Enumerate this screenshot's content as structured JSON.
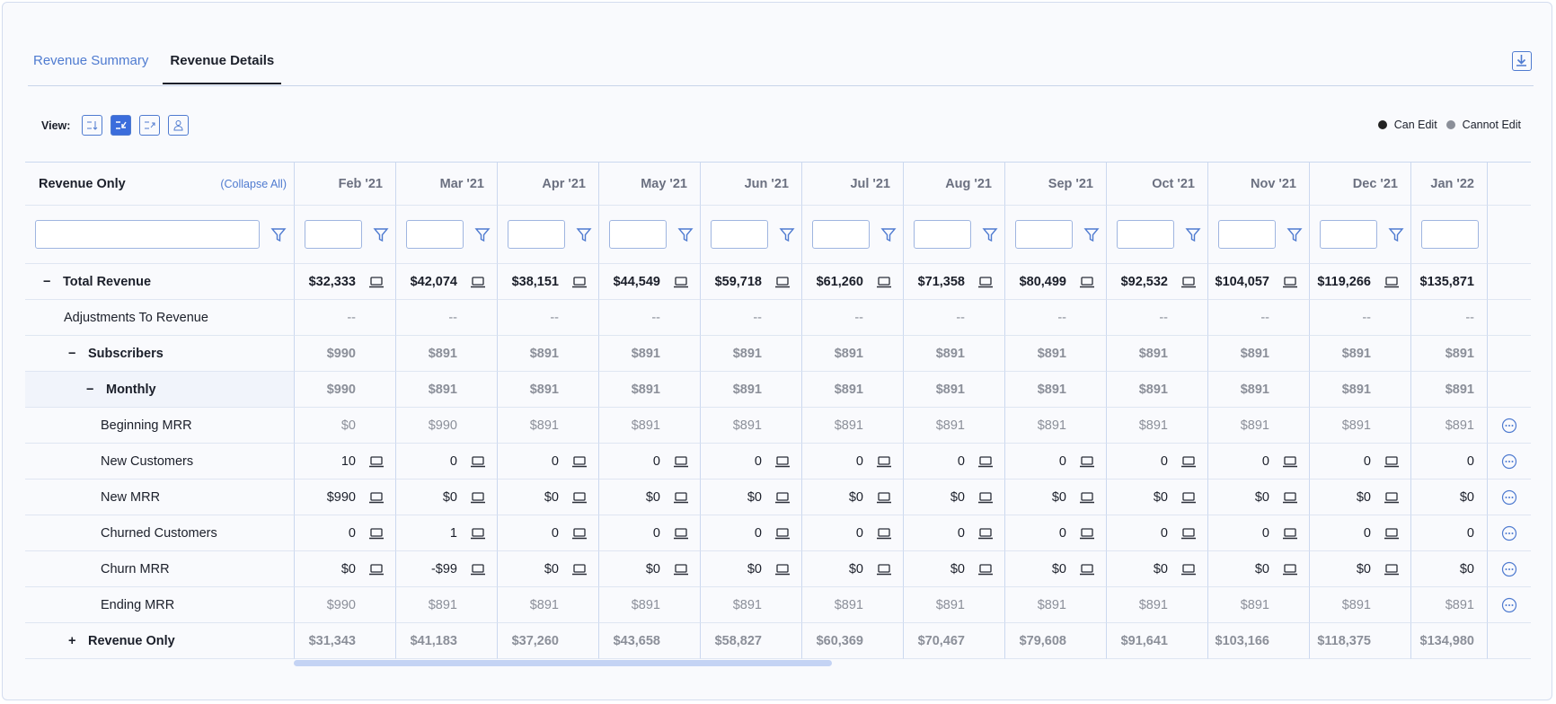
{
  "tabs": [
    "Revenue Summary",
    "Revenue Details"
  ],
  "view_label": "View:",
  "legend": [
    "Can Edit",
    "Cannot Edit"
  ],
  "table": {
    "first_header": "Revenue Only",
    "collapse_all": "(Collapse All)",
    "columns": [
      "Feb '21",
      "Mar '21",
      "Apr '21",
      "May '21",
      "Jun '21",
      "Jul '21",
      "Aug '21",
      "Sep '21",
      "Oct '21",
      "Nov '21",
      "Dec '21",
      "Jan '22"
    ],
    "rows": [
      {
        "toggle": "−",
        "label": "Total Revenue",
        "kind": "total",
        "editable": true,
        "actions": false,
        "cells": [
          "$32,333",
          "$42,074",
          "$38,151",
          "$44,549",
          "$59,718",
          "$61,260",
          "$71,358",
          "$80,499",
          "$92,532",
          "$104,057",
          "$119,266",
          "$135,871"
        ]
      },
      {
        "label": "Adjustments To Revenue",
        "kind": "adjust",
        "editable": false,
        "actions": false,
        "cells": [
          "--",
          "--",
          "--",
          "--",
          "--",
          "--",
          "--",
          "--",
          "--",
          "--",
          "--",
          "--"
        ]
      },
      {
        "toggle": "−",
        "label": "Subscribers",
        "kind": "group",
        "editable": false,
        "actions": false,
        "cells": [
          "$990",
          "$891",
          "$891",
          "$891",
          "$891",
          "$891",
          "$891",
          "$891",
          "$891",
          "$891",
          "$891",
          "$891"
        ]
      },
      {
        "toggle": "−",
        "label": "Monthly",
        "kind": "subgroup",
        "editable": false,
        "actions": false,
        "cells": [
          "$990",
          "$891",
          "$891",
          "$891",
          "$891",
          "$891",
          "$891",
          "$891",
          "$891",
          "$891",
          "$891",
          "$891"
        ]
      },
      {
        "label": "Beginning MRR",
        "kind": "item-muted",
        "editable": false,
        "actions": true,
        "cells": [
          "$0",
          "$990",
          "$891",
          "$891",
          "$891",
          "$891",
          "$891",
          "$891",
          "$891",
          "$891",
          "$891",
          "$891"
        ]
      },
      {
        "label": "New Customers",
        "kind": "item",
        "editable": true,
        "actions": true,
        "cells": [
          "10",
          "0",
          "0",
          "0",
          "0",
          "0",
          "0",
          "0",
          "0",
          "0",
          "0",
          "0"
        ]
      },
      {
        "label": "New MRR",
        "kind": "item",
        "editable": true,
        "actions": true,
        "cells": [
          "$990",
          "$0",
          "$0",
          "$0",
          "$0",
          "$0",
          "$0",
          "$0",
          "$0",
          "$0",
          "$0",
          "$0"
        ]
      },
      {
        "label": "Churned Customers",
        "kind": "item",
        "editable": true,
        "actions": true,
        "cells": [
          "0",
          "1",
          "0",
          "0",
          "0",
          "0",
          "0",
          "0",
          "0",
          "0",
          "0",
          "0"
        ]
      },
      {
        "label": "Churn MRR",
        "kind": "item",
        "editable": true,
        "actions": true,
        "cells": [
          "$0",
          "-$99",
          "$0",
          "$0",
          "$0",
          "$0",
          "$0",
          "$0",
          "$0",
          "$0",
          "$0",
          "$0"
        ]
      },
      {
        "label": "Ending MRR",
        "kind": "item-muted",
        "editable": false,
        "actions": true,
        "cells": [
          "$990",
          "$891",
          "$891",
          "$891",
          "$891",
          "$891",
          "$891",
          "$891",
          "$891",
          "$891",
          "$891",
          "$891"
        ]
      },
      {
        "toggle": "+",
        "label": "Revenue Only",
        "kind": "summary",
        "editable": false,
        "actions": false,
        "cells": [
          "$31,343",
          "$41,183",
          "$37,260",
          "$43,658",
          "$58,827",
          "$60,369",
          "$70,467",
          "$79,608",
          "$91,641",
          "$103,166",
          "$118,375",
          "$134,980"
        ]
      }
    ]
  }
}
